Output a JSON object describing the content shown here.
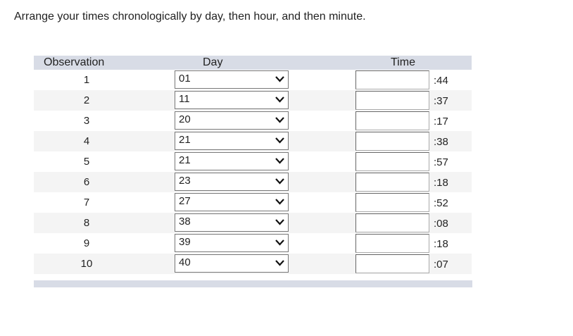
{
  "instruction": "Arrange your times chronologically by day, then hour, and then minute.",
  "headers": {
    "observation": "Observation",
    "day": "Day",
    "time": "Time"
  },
  "rows": [
    {
      "obs": "1",
      "day": "01",
      "hour": "",
      "minute": ":44"
    },
    {
      "obs": "2",
      "day": "11",
      "hour": "",
      "minute": ":37"
    },
    {
      "obs": "3",
      "day": "20",
      "hour": "",
      "minute": ":17"
    },
    {
      "obs": "4",
      "day": "21",
      "hour": "",
      "minute": ":38"
    },
    {
      "obs": "5",
      "day": "21",
      "hour": "",
      "minute": ":57"
    },
    {
      "obs": "6",
      "day": "23",
      "hour": "",
      "minute": ":18"
    },
    {
      "obs": "7",
      "day": "27",
      "hour": "",
      "minute": ":52"
    },
    {
      "obs": "8",
      "day": "38",
      "hour": "",
      "minute": ":08"
    },
    {
      "obs": "9",
      "day": "39",
      "hour": "",
      "minute": ":18"
    },
    {
      "obs": "10",
      "day": "40",
      "hour": "",
      "minute": ":07"
    }
  ]
}
